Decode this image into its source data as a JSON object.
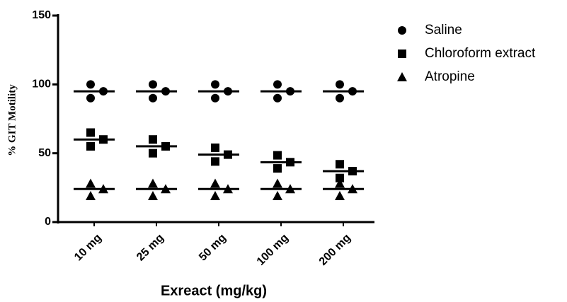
{
  "chart_data": {
    "type": "dot",
    "xlabel": "Exreact (mg/kg)",
    "ylabel": "% GIT Motility",
    "categories": [
      "10 mg",
      "25 mg",
      "50 mg",
      "100 mg",
      "200 mg"
    ],
    "ylim": [
      0,
      150
    ],
    "yticks": [
      0,
      50,
      100,
      150
    ],
    "legend": "right",
    "series": [
      {
        "name": "Saline",
        "color": "#000000",
        "marker": "circle",
        "values": [
          [
            100,
            90,
            95
          ],
          [
            100,
            90,
            95
          ],
          [
            100,
            90,
            95
          ],
          [
            100,
            90,
            95
          ],
          [
            100,
            90,
            95
          ]
        ],
        "means": [
          95,
          95,
          95,
          95,
          95
        ]
      },
      {
        "name": "Chloroform extract",
        "color": "#000000",
        "marker": "square",
        "values": [
          [
            65,
            55,
            60
          ],
          [
            60,
            50,
            55
          ],
          [
            54,
            44,
            49
          ],
          [
            48.5,
            39,
            43.5
          ],
          [
            42,
            32,
            37
          ]
        ],
        "means": [
          60,
          55,
          49,
          43.5,
          37
        ]
      },
      {
        "name": "Atropine",
        "color": "#000000",
        "marker": "triangle",
        "values": [
          [
            28,
            19,
            24
          ],
          [
            28,
            19,
            24
          ],
          [
            28,
            19,
            24
          ],
          [
            28,
            19,
            24
          ],
          [
            28,
            19,
            24
          ]
        ],
        "means": [
          24,
          24,
          24,
          24,
          24
        ]
      }
    ]
  }
}
